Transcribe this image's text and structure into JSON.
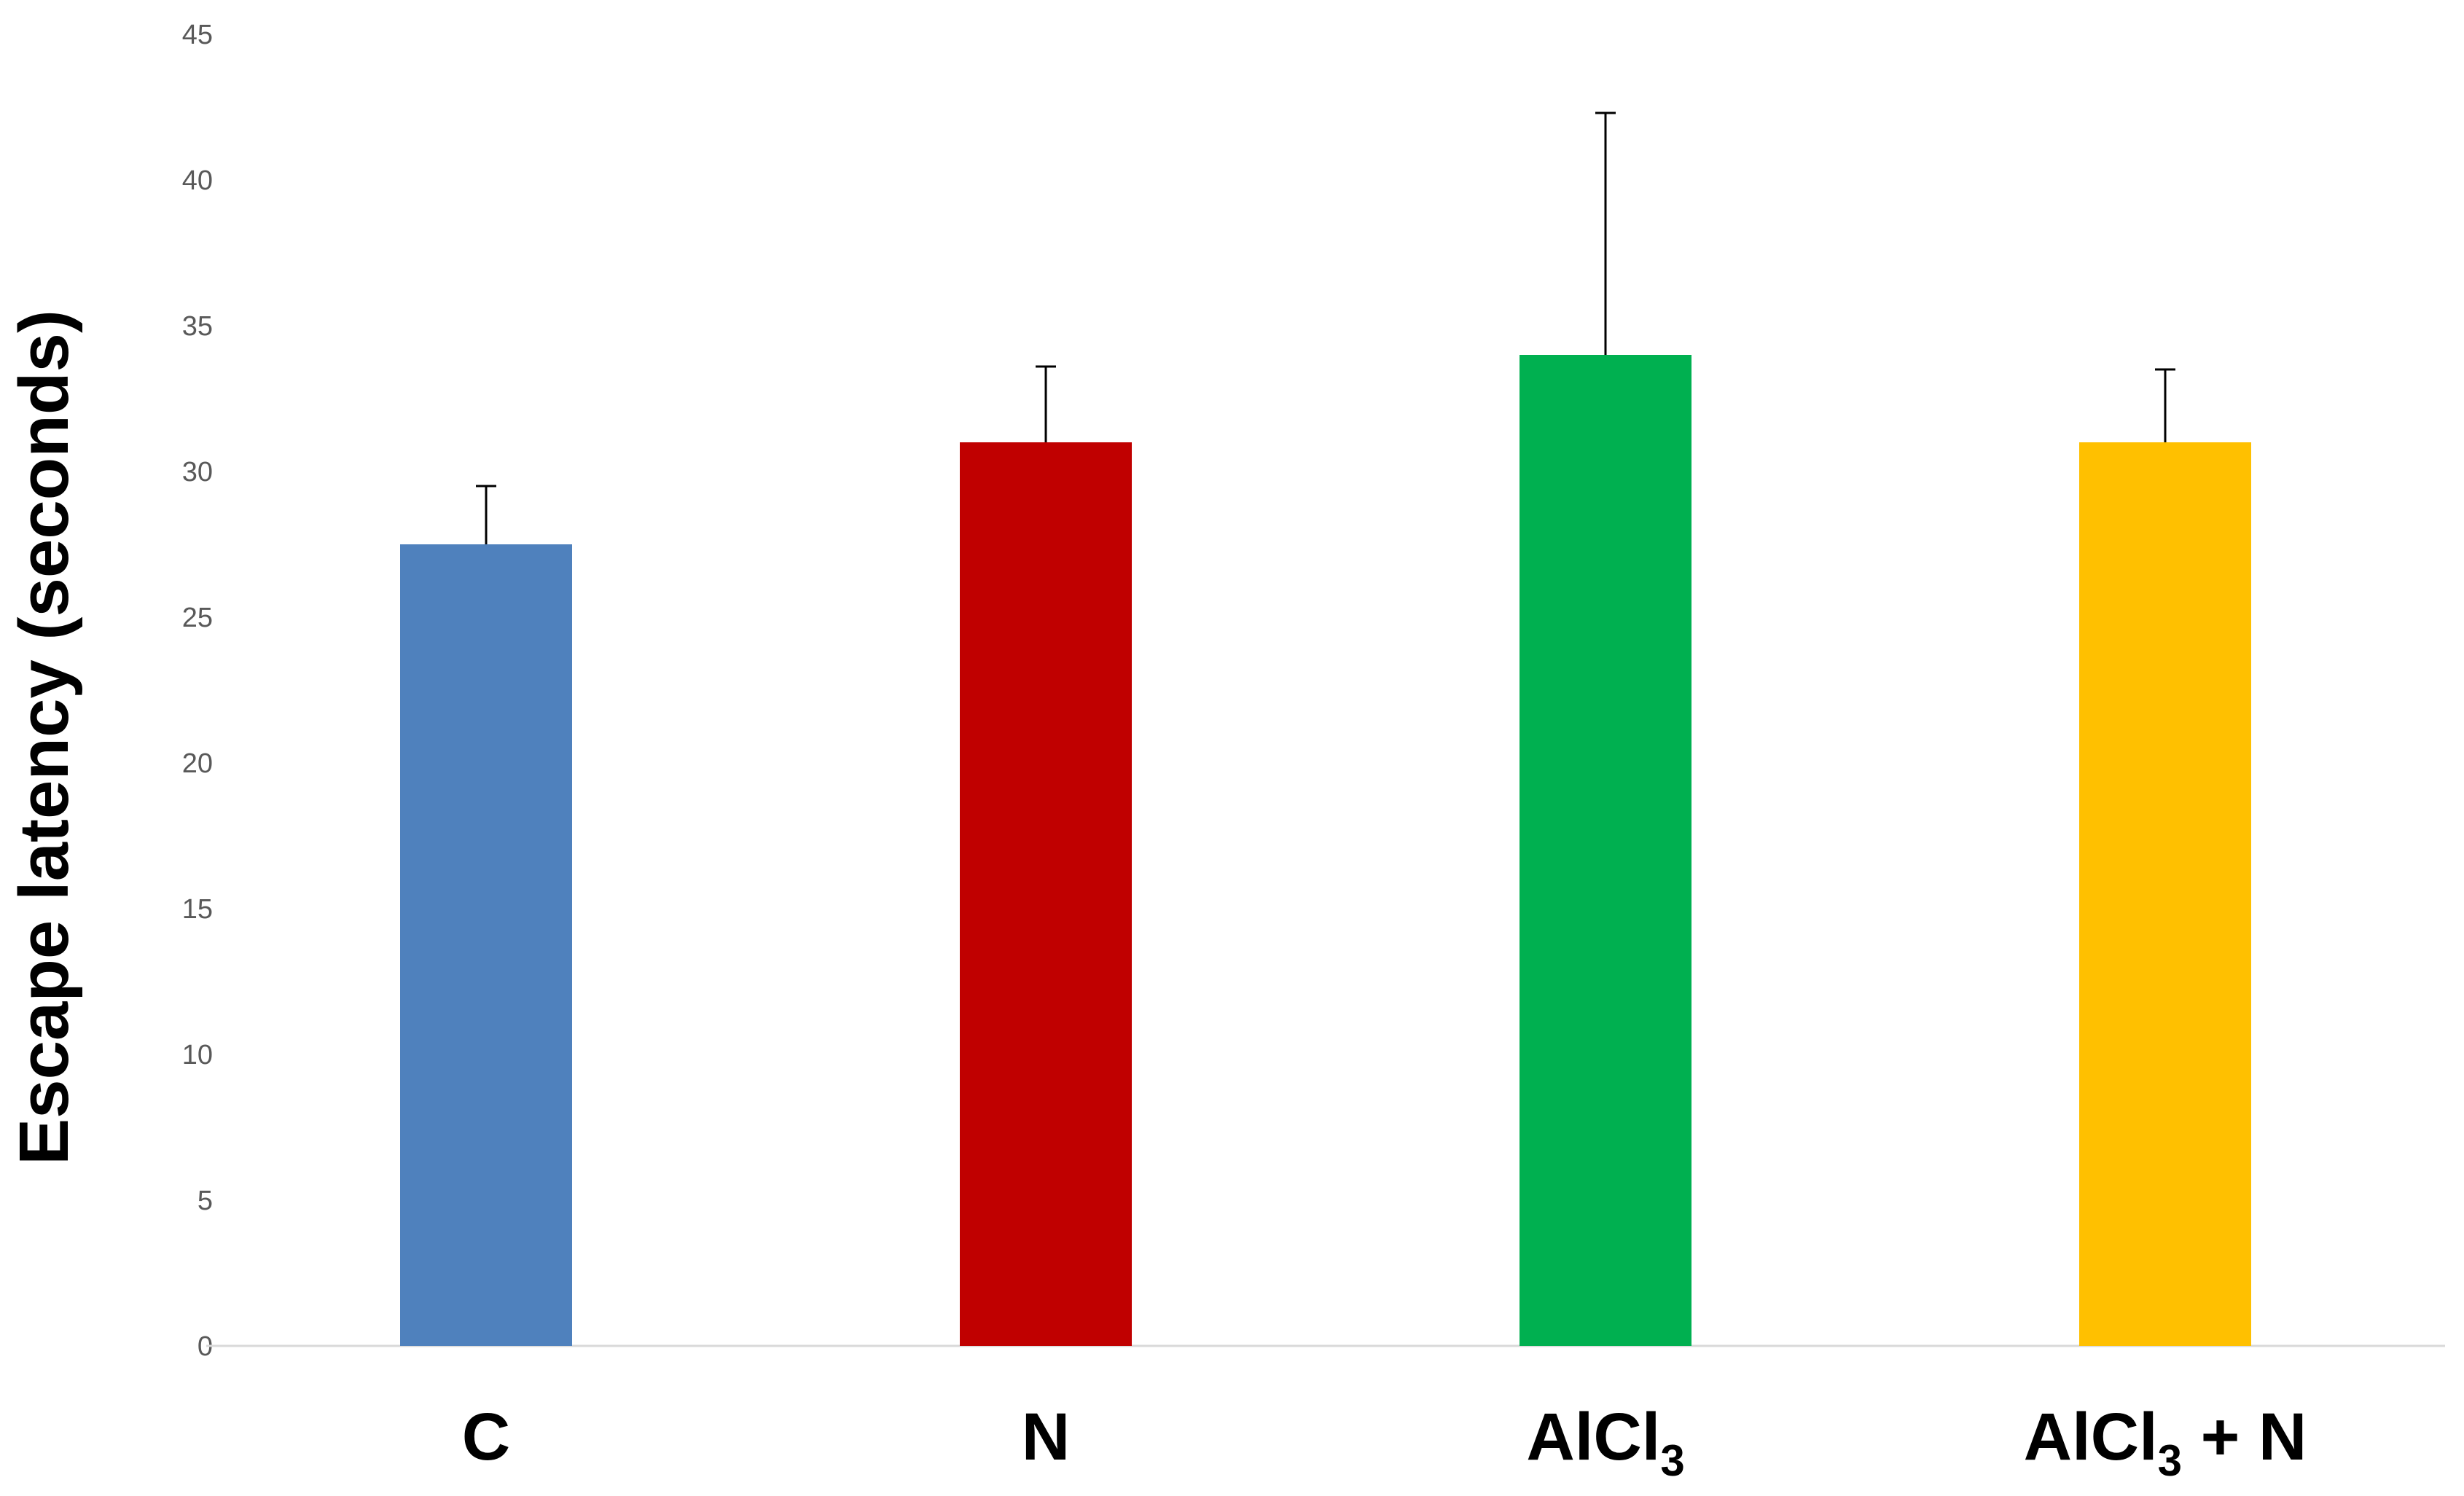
{
  "chart_data": {
    "type": "bar",
    "title": "",
    "xlabel": "",
    "ylabel": "Escape latency (seconds)",
    "ylim": [
      0,
      45
    ],
    "yticks": [
      0,
      5,
      10,
      15,
      20,
      25,
      30,
      35,
      40,
      45
    ],
    "grid": false,
    "legend": "none",
    "categories": [
      {
        "main": "C",
        "sub": "",
        "suffix": ""
      },
      {
        "main": "N",
        "sub": "",
        "suffix": ""
      },
      {
        "main": "AlCl",
        "sub": "3",
        "suffix": ""
      },
      {
        "main": "AlCl",
        "sub": "3",
        "suffix": " + N"
      }
    ],
    "values": [
      27.5,
      31.0,
      34.0,
      31.0
    ],
    "error_upper": [
      2.0,
      2.6,
      8.3,
      2.5
    ],
    "colors": [
      "#4F81BD",
      "#C00000",
      "#00B050",
      "#FFC000"
    ]
  }
}
